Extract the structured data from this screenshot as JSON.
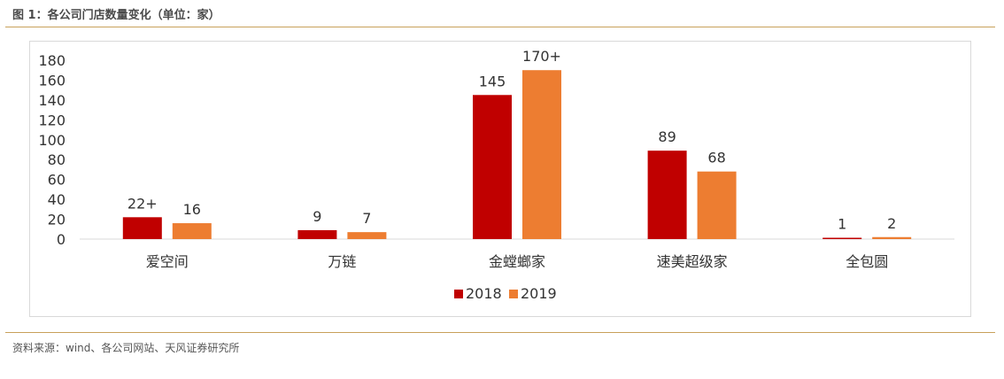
{
  "figure": {
    "title": "图 1：各公司门店数量变化（单位：家）",
    "source": "资料来源：wind、各公司网站、天风证券研究所"
  },
  "colors": {
    "s2018": "#c00000",
    "s2019": "#ed7d31",
    "rule": "#c8a15a"
  },
  "chart_data": {
    "type": "bar",
    "categories": [
      "爱空间",
      "万链",
      "金螳螂家",
      "速美超级家",
      "全包圆"
    ],
    "series": [
      {
        "name": "2018",
        "values": [
          22,
          9,
          145,
          89,
          1
        ],
        "labels": [
          "22+",
          "9",
          "145",
          "89",
          "1"
        ]
      },
      {
        "name": "2019",
        "values": [
          16,
          7,
          170,
          68,
          2
        ],
        "labels": [
          "16",
          "7",
          "170+",
          "68",
          "2"
        ]
      }
    ],
    "ylim": [
      0,
      180
    ],
    "yticks": [
      0,
      20,
      40,
      60,
      80,
      100,
      120,
      140,
      160,
      180
    ],
    "legend_position": "bottom",
    "grid": false
  }
}
